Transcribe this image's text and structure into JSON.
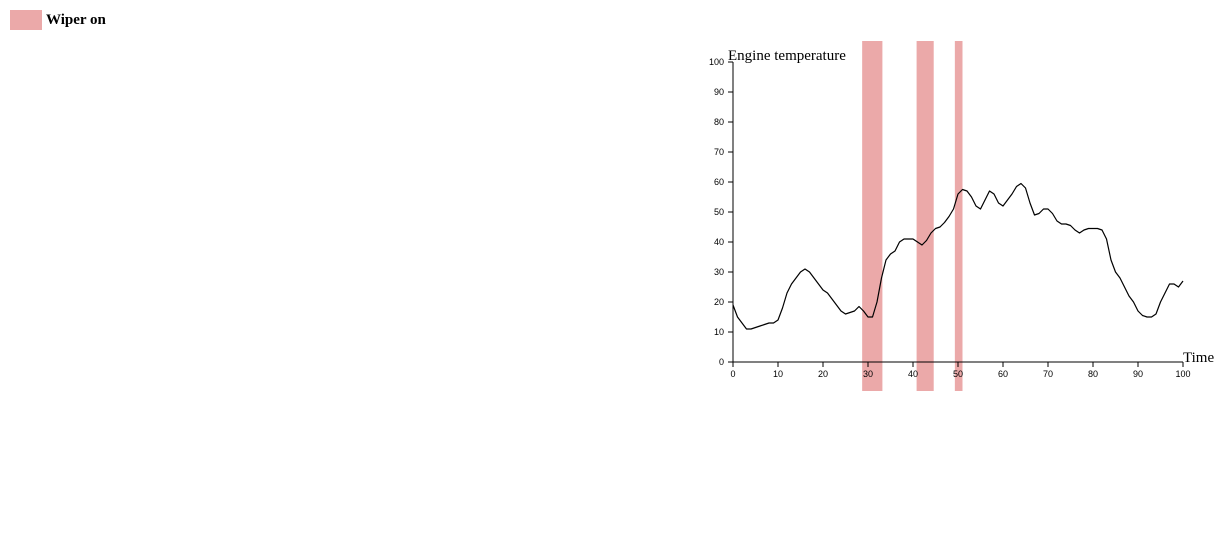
{
  "legend": {
    "label": "Wiper on",
    "color": "#eba9a9"
  },
  "chart_data": {
    "type": "line",
    "title": "",
    "xlabel": "Time",
    "ylabel": "Engine temperature",
    "xlim": [
      0,
      100
    ],
    "ylim": [
      0,
      100
    ],
    "x_ticks": [
      0,
      10,
      20,
      30,
      40,
      50,
      60,
      70,
      80,
      90,
      100
    ],
    "y_ticks": [
      0,
      10,
      20,
      30,
      40,
      50,
      60,
      70,
      80,
      90,
      100
    ],
    "grid": false,
    "legend_position": "top-left",
    "line_color": "#000000",
    "wiper_intervals": [
      [
        28.7,
        33.2
      ],
      [
        40.8,
        44.6
      ],
      [
        49.3,
        51.0
      ]
    ],
    "series": [
      {
        "x": [
          0,
          1,
          2,
          3,
          4,
          5,
          6,
          7,
          8,
          9,
          10,
          11,
          12,
          13,
          14,
          15,
          16,
          17,
          18,
          19,
          20,
          21,
          22,
          23,
          24,
          25,
          26,
          27,
          28,
          29,
          30,
          31,
          32,
          33,
          34,
          35,
          36,
          37,
          38,
          39,
          40,
          41,
          42,
          43,
          44,
          45,
          46,
          47,
          48,
          49,
          50,
          51,
          52,
          53,
          54,
          55,
          56,
          57,
          58,
          59,
          60,
          61,
          62,
          63,
          64,
          65,
          66,
          67,
          68,
          69,
          70,
          71,
          72,
          73,
          74,
          75,
          76,
          77,
          78,
          79,
          80,
          81,
          82,
          83,
          84,
          85,
          86,
          87,
          88,
          89,
          90,
          91,
          92,
          93,
          94,
          95,
          96,
          97,
          98,
          99,
          100
        ],
        "values": [
          19,
          15,
          13,
          11,
          11,
          11.5,
          12,
          12.5,
          13,
          13,
          14,
          18,
          23,
          26,
          28,
          30,
          31,
          30,
          28,
          26,
          24,
          23,
          21,
          19,
          17,
          16,
          16.5,
          17,
          18.5,
          17,
          15,
          15,
          20,
          28,
          34,
          36,
          37,
          40,
          41,
          41,
          41,
          40,
          39,
          40.5,
          43,
          44.5,
          45,
          46.5,
          48.5,
          51,
          56,
          57.5,
          57,
          55,
          52,
          51,
          54,
          57,
          56,
          53,
          52,
          54,
          56,
          58.5,
          59.5,
          58,
          53,
          49,
          49.5,
          51,
          51,
          49.5,
          47,
          46,
          46,
          45.5,
          44,
          43,
          44,
          44.5,
          44.5,
          44.5,
          44,
          41,
          34,
          30,
          28,
          25,
          22,
          20,
          17,
          15.5,
          15,
          15,
          16,
          20,
          23,
          26,
          26,
          25,
          27
        ]
      }
    ]
  }
}
